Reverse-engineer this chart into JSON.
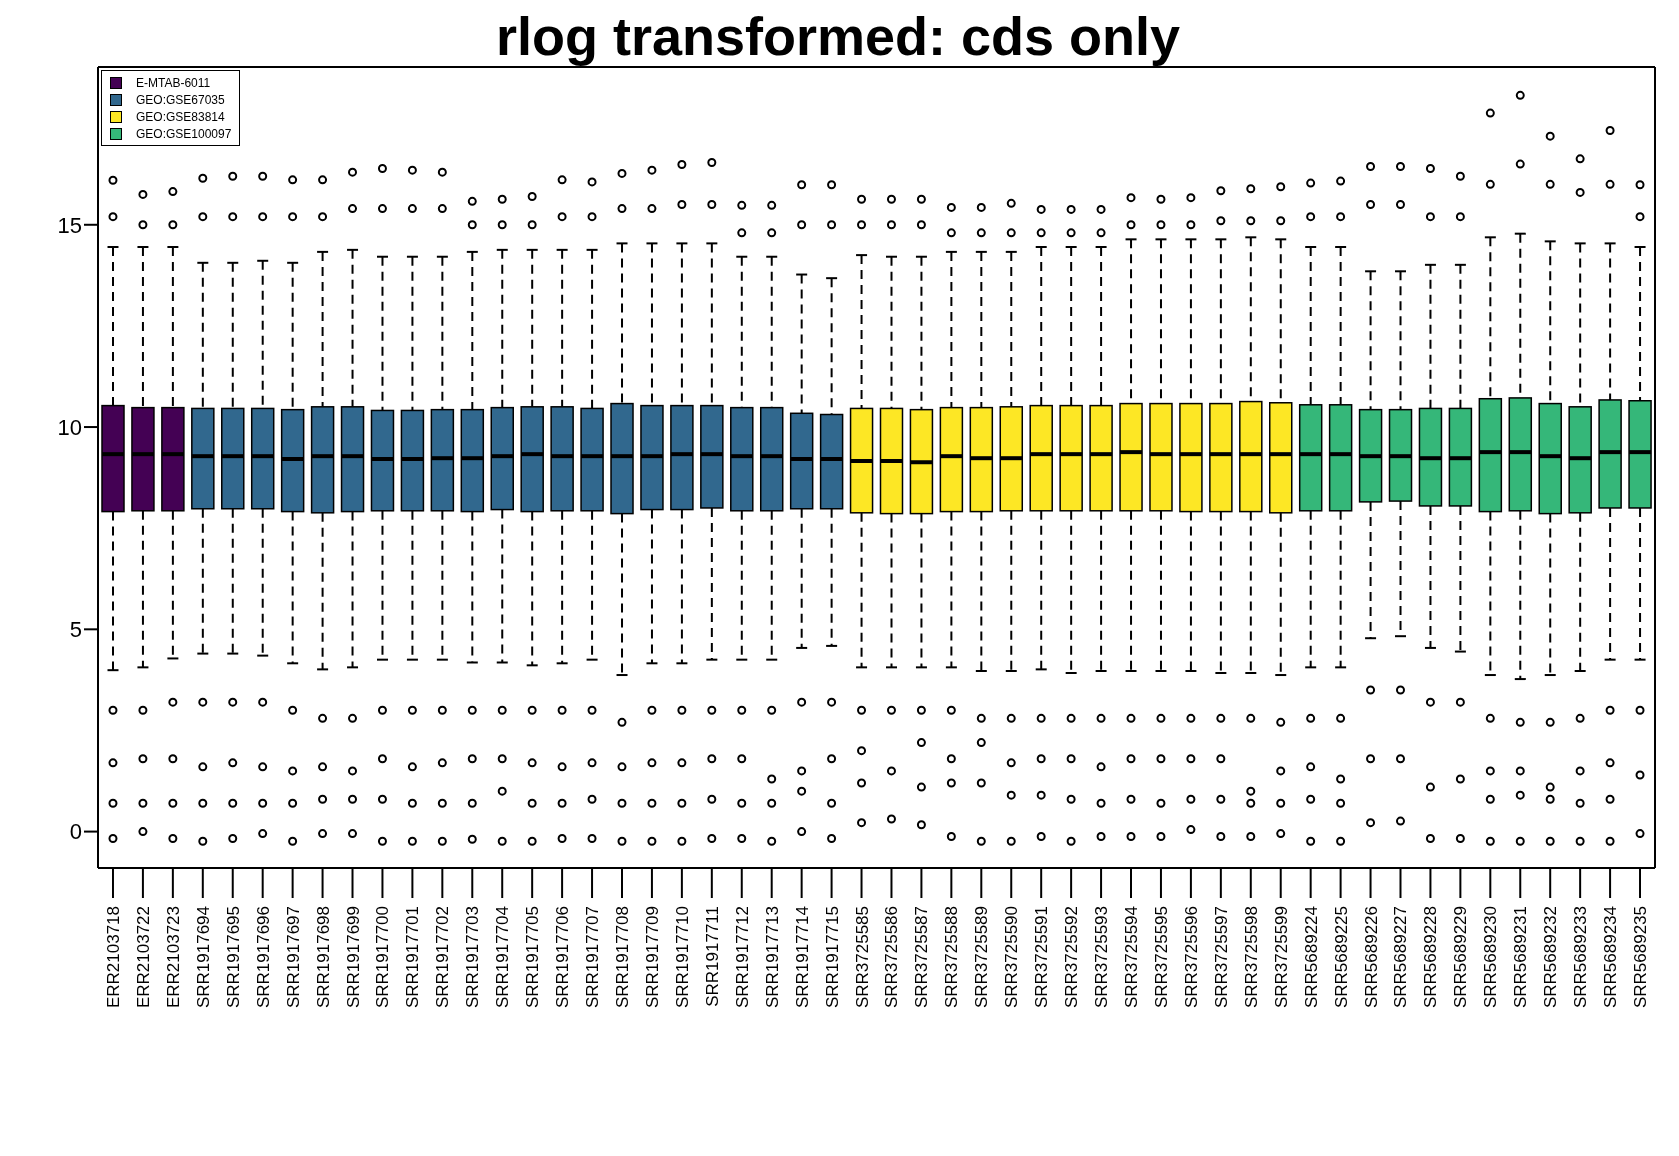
{
  "chart_data": {
    "type": "box",
    "title": "rlog transformed: cds only",
    "categories": [
      "ERR2103718",
      "ERR2103722",
      "ERR2103723",
      "SRR1917694",
      "SRR1917695",
      "SRR1917696",
      "SRR1917697",
      "SRR1917698",
      "SRR1917699",
      "SRR1917700",
      "SRR1917701",
      "SRR1917702",
      "SRR1917703",
      "SRR1917704",
      "SRR1917705",
      "SRR1917706",
      "SRR1917707",
      "SRR1917708",
      "SRR1917709",
      "SRR1917710",
      "SRR1917711",
      "SRR1917712",
      "SRR1917713",
      "SRR1917714",
      "SRR1917715",
      "SRR3725585",
      "SRR3725586",
      "SRR3725587",
      "SRR3725588",
      "SRR3725589",
      "SRR3725590",
      "SRR3725591",
      "SRR3725592",
      "SRR3725593",
      "SRR3725594",
      "SRR3725595",
      "SRR3725596",
      "SRR3725597",
      "SRR3725598",
      "SRR3725599",
      "SRR5689224",
      "SRR5689225",
      "SRR5689226",
      "SRR5689227",
      "SRR5689228",
      "SRR5689229",
      "SRR5689230",
      "SRR5689231",
      "SRR5689232",
      "SRR5689233",
      "SRR5689234",
      "SRR5689235"
    ],
    "ylim": [
      -0.9,
      18.9
    ],
    "yticks": [
      0,
      5,
      10,
      15
    ],
    "legend": "top left",
    "series": [
      {
        "name": "E-MTAB-6011",
        "color": "#440154",
        "boxes": [
          {
            "low": 3.99,
            "q1": 7.91,
            "median": 9.33,
            "q3": 10.53,
            "high": 14.45,
            "outliers": [
              16.1,
              15.2,
              3.0,
              1.7,
              0.7,
              -0.17
            ]
          },
          {
            "low": 4.06,
            "q1": 7.93,
            "median": 9.33,
            "q3": 10.48,
            "high": 14.45,
            "outliers": [
              15.75,
              15.0,
              3.0,
              1.8,
              0.7,
              0.0
            ]
          },
          {
            "low": 4.28,
            "q1": 7.93,
            "median": 9.33,
            "q3": 10.48,
            "high": 14.45,
            "outliers": [
              15.82,
              15.0,
              3.2,
              1.8,
              0.7,
              -0.17
            ]
          },
          null,
          null,
          null,
          null,
          null,
          null,
          null,
          null,
          null,
          null,
          null,
          null,
          null,
          null,
          null,
          null,
          null,
          null,
          null,
          null,
          null,
          null,
          null,
          null,
          null,
          null,
          null,
          null,
          null,
          null,
          null,
          null,
          null,
          null,
          null,
          null,
          null,
          null,
          null,
          null,
          null,
          null,
          null,
          null,
          null,
          null,
          null,
          null,
          null
        ]
      },
      {
        "name": "GEO:GSE67035",
        "color": "#31688e",
        "boxes": [
          null,
          null,
          null,
          {
            "low": 4.4,
            "q1": 7.98,
            "median": 9.28,
            "q3": 10.46,
            "high": 14.06,
            "outliers": [
              16.15,
              15.2,
              3.2,
              1.6,
              0.7,
              -0.24
            ]
          },
          {
            "low": 4.4,
            "q1": 7.98,
            "median": 9.28,
            "q3": 10.46,
            "high": 14.06,
            "outliers": [
              16.2,
              15.2,
              3.2,
              1.7,
              0.7,
              -0.17
            ]
          },
          {
            "low": 4.35,
            "q1": 7.98,
            "median": 9.28,
            "q3": 10.46,
            "high": 14.11,
            "outliers": [
              16.2,
              15.2,
              3.2,
              1.6,
              0.7,
              -0.05
            ]
          },
          {
            "low": 4.16,
            "q1": 7.91,
            "median": 9.21,
            "q3": 10.43,
            "high": 14.06,
            "outliers": [
              16.11,
              15.2,
              3.0,
              1.5,
              0.7,
              -0.24
            ]
          },
          {
            "low": 4.01,
            "q1": 7.88,
            "median": 9.28,
            "q3": 10.5,
            "high": 14.33,
            "outliers": [
              16.11,
              15.2,
              2.8,
              1.6,
              0.8,
              -0.05
            ]
          },
          {
            "low": 4.06,
            "q1": 7.91,
            "median": 9.28,
            "q3": 10.5,
            "high": 14.38,
            "outliers": [
              16.3,
              15.4,
              2.8,
              1.5,
              0.8,
              -0.05
            ]
          },
          {
            "low": 4.25,
            "q1": 7.93,
            "median": 9.21,
            "q3": 10.41,
            "high": 14.21,
            "outliers": [
              16.39,
              15.4,
              3.0,
              1.8,
              0.8,
              -0.24
            ]
          },
          {
            "low": 4.25,
            "q1": 7.93,
            "median": 9.21,
            "q3": 10.41,
            "high": 14.21,
            "outliers": [
              16.35,
              15.4,
              3.0,
              1.6,
              0.7,
              -0.24
            ]
          },
          {
            "low": 4.25,
            "q1": 7.93,
            "median": 9.23,
            "q3": 10.43,
            "high": 14.21,
            "outliers": [
              16.3,
              15.4,
              3.0,
              1.7,
              0.7,
              -0.24
            ]
          },
          {
            "low": 4.18,
            "q1": 7.91,
            "median": 9.23,
            "q3": 10.43,
            "high": 14.33,
            "outliers": [
              15.58,
              15.0,
              3.0,
              1.8,
              0.7,
              -0.19
            ]
          },
          {
            "low": 4.18,
            "q1": 7.96,
            "median": 9.28,
            "q3": 10.48,
            "high": 14.38,
            "outliers": [
              15.63,
              15.0,
              3.0,
              1.8,
              1.0,
              -0.24
            ]
          },
          {
            "low": 4.11,
            "q1": 7.91,
            "median": 9.33,
            "q3": 10.5,
            "high": 14.38,
            "outliers": [
              15.7,
              15.0,
              3.0,
              1.7,
              0.7,
              -0.24
            ]
          },
          {
            "low": 4.16,
            "q1": 7.93,
            "median": 9.28,
            "q3": 10.5,
            "high": 14.38,
            "outliers": [
              16.11,
              15.2,
              3.0,
              1.6,
              0.7,
              -0.17
            ]
          },
          {
            "low": 4.25,
            "q1": 7.93,
            "median": 9.28,
            "q3": 10.46,
            "high": 14.38,
            "outliers": [
              16.06,
              15.2,
              3.0,
              1.7,
              0.8,
              -0.17
            ]
          },
          {
            "low": 3.87,
            "q1": 7.86,
            "median": 9.28,
            "q3": 10.58,
            "high": 14.54,
            "outliers": [
              16.27,
              15.4,
              2.7,
              1.6,
              0.7,
              -0.24
            ]
          },
          {
            "low": 4.16,
            "q1": 7.96,
            "median": 9.28,
            "q3": 10.53,
            "high": 14.54,
            "outliers": [
              16.35,
              15.4,
              3.0,
              1.7,
              0.7,
              -0.24
            ]
          },
          {
            "low": 4.16,
            "q1": 7.96,
            "median": 9.33,
            "q3": 10.53,
            "high": 14.54,
            "outliers": [
              16.49,
              15.5,
              3.0,
              1.7,
              0.7,
              -0.24
            ]
          },
          {
            "low": 4.25,
            "q1": 8.0,
            "median": 9.33,
            "q3": 10.53,
            "high": 14.54,
            "outliers": [
              16.54,
              15.5,
              3.0,
              1.8,
              0.8,
              -0.17
            ]
          },
          {
            "low": 4.25,
            "q1": 7.93,
            "median": 9.28,
            "q3": 10.48,
            "high": 14.21,
            "outliers": [
              15.48,
              14.8,
              3.0,
              1.8,
              0.7,
              -0.17
            ]
          },
          {
            "low": 4.25,
            "q1": 7.93,
            "median": 9.28,
            "q3": 10.48,
            "high": 14.21,
            "outliers": [
              15.48,
              14.8,
              3.0,
              1.3,
              0.7,
              -0.24
            ]
          },
          {
            "low": 4.54,
            "q1": 7.98,
            "median": 9.21,
            "q3": 10.34,
            "high": 13.77,
            "outliers": [
              15.99,
              15.0,
              3.2,
              1.5,
              1.0,
              0.0
            ]
          },
          {
            "low": 4.59,
            "q1": 7.98,
            "median": 9.21,
            "q3": 10.31,
            "high": 13.68,
            "outliers": [
              15.99,
              15.0,
              3.2,
              1.8,
              0.7,
              -0.17
            ]
          },
          null,
          null,
          null,
          null,
          null,
          null,
          null,
          null,
          null,
          null,
          null,
          null,
          null,
          null,
          null,
          null,
          null,
          null,
          null,
          null,
          null,
          null,
          null,
          null,
          null,
          null,
          null
        ]
      },
      {
        "name": "GEO:GSE83814",
        "color": "#fde725",
        "boxes": [
          null,
          null,
          null,
          null,
          null,
          null,
          null,
          null,
          null,
          null,
          null,
          null,
          null,
          null,
          null,
          null,
          null,
          null,
          null,
          null,
          null,
          null,
          null,
          null,
          null,
          {
            "low": 4.06,
            "q1": 7.88,
            "median": 9.16,
            "q3": 10.46,
            "high": 14.25,
            "outliers": [
              15.63,
              15.0,
              3.0,
              2.0,
              1.2,
              0.22
            ]
          },
          {
            "low": 4.06,
            "q1": 7.86,
            "median": 9.16,
            "q3": 10.46,
            "high": 14.21,
            "outliers": [
              15.63,
              15.0,
              3.0,
              1.5,
              0.31
            ]
          },
          {
            "low": 4.06,
            "q1": 7.86,
            "median": 9.13,
            "q3": 10.43,
            "high": 14.21,
            "outliers": [
              15.63,
              15.0,
              3.0,
              2.2,
              1.1,
              0.17
            ]
          },
          {
            "low": 4.06,
            "q1": 7.91,
            "median": 9.28,
            "q3": 10.48,
            "high": 14.33,
            "outliers": [
              15.43,
              14.8,
              3.0,
              1.8,
              1.2,
              -0.12
            ]
          },
          {
            "low": 3.97,
            "q1": 7.91,
            "median": 9.23,
            "q3": 10.48,
            "high": 14.33,
            "outliers": [
              15.43,
              14.8,
              2.8,
              2.2,
              1.2,
              -0.24
            ]
          },
          {
            "low": 3.97,
            "q1": 7.93,
            "median": 9.23,
            "q3": 10.5,
            "high": 14.33,
            "outliers": [
              15.53,
              14.8,
              2.8,
              1.7,
              0.9,
              -0.24
            ]
          },
          {
            "low": 4.01,
            "q1": 7.93,
            "median": 9.33,
            "q3": 10.53,
            "high": 14.45,
            "outliers": [
              15.38,
              14.8,
              2.8,
              1.8,
              0.9,
              -0.12
            ]
          },
          {
            "low": 3.92,
            "q1": 7.93,
            "median": 9.33,
            "q3": 10.53,
            "high": 14.45,
            "outliers": [
              15.38,
              14.8,
              2.8,
              1.8,
              0.8,
              -0.24
            ]
          },
          {
            "low": 3.97,
            "q1": 7.93,
            "median": 9.33,
            "q3": 10.53,
            "high": 14.45,
            "outliers": [
              15.38,
              14.8,
              2.8,
              1.6,
              0.7,
              -0.12
            ]
          },
          {
            "low": 3.97,
            "q1": 7.93,
            "median": 9.38,
            "q3": 10.58,
            "high": 14.64,
            "outliers": [
              15.67,
              15.0,
              2.8,
              1.8,
              0.8,
              -0.12
            ]
          },
          {
            "low": 3.97,
            "q1": 7.93,
            "median": 9.33,
            "q3": 10.58,
            "high": 14.64,
            "outliers": [
              15.63,
              15.0,
              2.8,
              1.8,
              0.7,
              -0.12
            ]
          },
          {
            "low": 3.97,
            "q1": 7.91,
            "median": 9.33,
            "q3": 10.58,
            "high": 14.64,
            "outliers": [
              15.67,
              15.0,
              2.8,
              1.8,
              0.8,
              0.05
            ]
          },
          {
            "low": 3.92,
            "q1": 7.91,
            "median": 9.33,
            "q3": 10.58,
            "high": 14.64,
            "outliers": [
              15.84,
              15.1,
              2.8,
              1.8,
              0.8,
              -0.12
            ]
          },
          {
            "low": 3.92,
            "q1": 7.91,
            "median": 9.33,
            "q3": 10.63,
            "high": 14.69,
            "outliers": [
              15.89,
              15.1,
              2.8,
              1.0,
              0.7,
              -0.12
            ]
          },
          {
            "low": 3.87,
            "q1": 7.88,
            "median": 9.33,
            "q3": 10.6,
            "high": 14.64,
            "outliers": [
              15.94,
              15.1,
              2.7,
              1.5,
              0.7,
              -0.05
            ]
          },
          null,
          null,
          null,
          null,
          null,
          null,
          null,
          null,
          null,
          null,
          null,
          null
        ]
      },
      {
        "name": "GEO:GSE100097",
        "color": "#35b779",
        "boxes": [
          null,
          null,
          null,
          null,
          null,
          null,
          null,
          null,
          null,
          null,
          null,
          null,
          null,
          null,
          null,
          null,
          null,
          null,
          null,
          null,
          null,
          null,
          null,
          null,
          null,
          null,
          null,
          null,
          null,
          null,
          null,
          null,
          null,
          null,
          null,
          null,
          null,
          null,
          null,
          null,
          {
            "low": 4.06,
            "q1": 7.93,
            "median": 9.33,
            "q3": 10.55,
            "high": 14.45,
            "outliers": [
              16.03,
              15.2,
              2.8,
              1.6,
              0.8,
              -0.24
            ]
          },
          {
            "low": 4.06,
            "q1": 7.93,
            "median": 9.33,
            "q3": 10.55,
            "high": 14.45,
            "outliers": [
              16.08,
              15.2,
              2.8,
              1.3,
              0.7,
              -0.24
            ]
          },
          {
            "low": 4.78,
            "q1": 8.15,
            "median": 9.28,
            "q3": 10.43,
            "high": 13.85,
            "outliers": [
              16.44,
              15.5,
              3.5,
              1.8,
              0.22
            ]
          },
          {
            "low": 4.83,
            "q1": 8.17,
            "median": 9.28,
            "q3": 10.43,
            "high": 13.85,
            "outliers": [
              16.44,
              15.5,
              3.5,
              1.8,
              0.26
            ]
          },
          {
            "low": 4.54,
            "q1": 8.05,
            "median": 9.23,
            "q3": 10.46,
            "high": 14.01,
            "outliers": [
              16.39,
              15.2,
              3.2,
              1.1,
              -0.17
            ]
          },
          {
            "low": 4.45,
            "q1": 8.05,
            "median": 9.23,
            "q3": 10.46,
            "high": 14.01,
            "outliers": [
              16.2,
              15.2,
              3.2,
              1.3,
              -0.17
            ]
          },
          {
            "low": 3.87,
            "q1": 7.91,
            "median": 9.38,
            "q3": 10.7,
            "high": 14.69,
            "outliers": [
              17.76,
              16.0,
              2.8,
              1.5,
              0.8,
              -0.24
            ]
          },
          {
            "low": 3.77,
            "q1": 7.93,
            "median": 9.38,
            "q3": 10.72,
            "high": 14.78,
            "outliers": [
              18.2,
              16.5,
              2.7,
              1.5,
              0.9,
              -0.24
            ]
          },
          {
            "low": 3.87,
            "q1": 7.86,
            "median": 9.28,
            "q3": 10.58,
            "high": 14.59,
            "outliers": [
              17.19,
              16.0,
              2.7,
              1.1,
              0.8,
              -0.24
            ]
          },
          {
            "low": 3.97,
            "q1": 7.88,
            "median": 9.23,
            "q3": 10.5,
            "high": 14.54,
            "outliers": [
              16.63,
              15.8,
              2.8,
              1.5,
              0.7,
              -0.24
            ]
          },
          {
            "low": 4.25,
            "q1": 8.0,
            "median": 9.38,
            "q3": 10.67,
            "high": 14.54,
            "outliers": [
              17.33,
              16.0,
              3.0,
              1.7,
              0.8,
              -0.24
            ]
          },
          {
            "low": 4.25,
            "q1": 8.0,
            "median": 9.38,
            "q3": 10.65,
            "high": 14.45,
            "outliers": [
              15.99,
              15.2,
              3.0,
              1.4,
              -0.05
            ]
          }
        ]
      }
    ]
  }
}
